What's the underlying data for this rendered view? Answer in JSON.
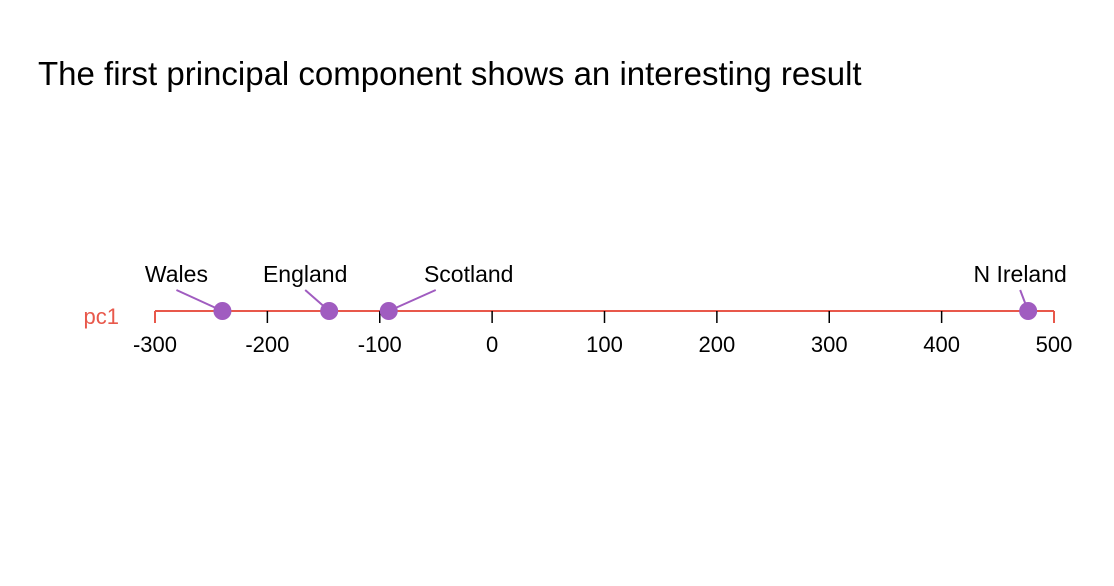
{
  "title": "The first principal component shows an interesting result",
  "chart_data": {
    "type": "scatter",
    "axis_label": "pc1",
    "xlim": [
      -300,
      500
    ],
    "ticks": [
      -300,
      -200,
      -100,
      0,
      100,
      200,
      300,
      400,
      500
    ],
    "tick_labels": [
      "-300",
      "-200",
      "-100",
      "0",
      "100",
      "200",
      "300",
      "400",
      "500"
    ],
    "points": [
      {
        "label": "Wales",
        "x": -240
      },
      {
        "label": "England",
        "x": -145
      },
      {
        "label": "Scotland",
        "x": -92
      },
      {
        "label": "N Ireland",
        "x": 477
      }
    ],
    "grid": false
  },
  "colors": {
    "axis": "#e8584b",
    "axis_label": "#e8584b",
    "point": "#a05cc0",
    "leader": "#a05cc0",
    "tick": "#000000",
    "text": "#000000"
  }
}
